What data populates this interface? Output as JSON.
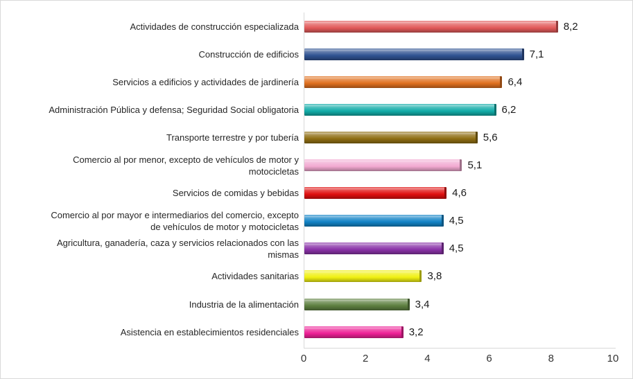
{
  "chart_data": {
    "type": "bar",
    "orientation": "horizontal",
    "title": "",
    "xlabel": "",
    "ylabel": "",
    "xlim": [
      0,
      10
    ],
    "x_ticks": [
      "0",
      "2",
      "4",
      "6",
      "8",
      "10"
    ],
    "grid": false,
    "legend": "none",
    "categories": [
      "Actividades de construcción especializada",
      "Construcción de edificios",
      "Servicios a edificios y actividades de jardinería",
      "Administración Pública y defensa; Seguridad Social obligatoria",
      "Transporte terrestre y por tubería",
      "Comercio al por menor, excepto de vehículos de motor y motocicletas",
      "Servicios de comidas y bebidas",
      "Comercio al por mayor e intermediarios del comercio, excepto de vehículos de motor y motocicletas",
      "Agricultura, ganadería, caza y servicios relacionados con las mismas",
      "Actividades sanitarias",
      "Industria de la alimentación",
      "Asistencia en establecimientos residenciales"
    ],
    "category_lines": [
      [
        "Actividades de construcción especializada"
      ],
      [
        "Construcción de edificios"
      ],
      [
        "Servicios a edificios y actividades de jardinería"
      ],
      [
        "Administración Pública y defensa; Seguridad Social obligatoria"
      ],
      [
        "Transporte terrestre y por tubería"
      ],
      [
        "Comercio al por menor, excepto de vehículos de motor y",
        "motocicletas"
      ],
      [
        "Servicios de comidas y bebidas"
      ],
      [
        "Comercio al por mayor e intermediarios del comercio, excepto",
        "de vehículos de motor y motocicletas"
      ],
      [
        "Agricultura, ganadería, caza y servicios relacionados con las",
        "mismas"
      ],
      [
        "Actividades sanitarias"
      ],
      [
        "Industria de la alimentación"
      ],
      [
        "Asistencia en establecimientos residenciales"
      ]
    ],
    "values": [
      8.2,
      7.1,
      6.4,
      6.2,
      5.6,
      5.1,
      4.6,
      4.5,
      4.5,
      3.8,
      3.4,
      3.2
    ],
    "value_labels": [
      "8,2",
      "7,1",
      "6,4",
      "6,2",
      "5,6",
      "5,1",
      "4,6",
      "4,5",
      "4,5",
      "3,8",
      "3,4",
      "3,2"
    ],
    "bar_colors": [
      "#e25a5a",
      "#2f5292",
      "#e0701f",
      "#12aca8",
      "#8f6e13",
      "#f2a9d1",
      "#e01010",
      "#1283c6",
      "#8a32a8",
      "#f0f012",
      "#5e8040",
      "#ee2096"
    ],
    "axis_line_color": "#d9d9d9",
    "label_text_color": "#262626",
    "value_text_color": "#1a1a1a"
  }
}
